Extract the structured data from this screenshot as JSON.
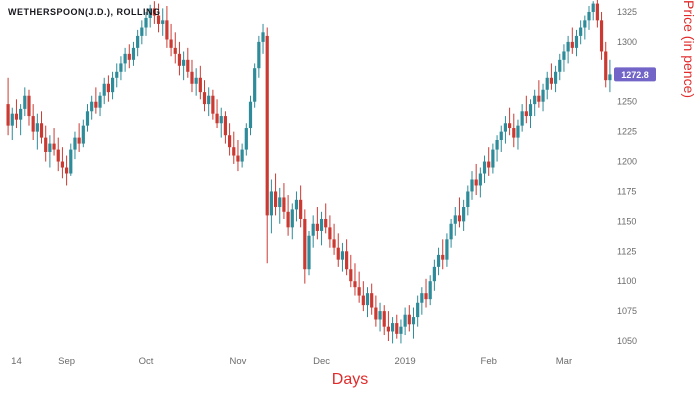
{
  "title": {
    "text": "WETHERSPOON(J.D.), ROLLING"
  },
  "axis_titles": {
    "x": "Days",
    "y": "Price (in pence)"
  },
  "colors": {
    "up": "#2e8b99",
    "down": "#cb3a32",
    "axis_text": "#6b6b6b",
    "axis_title": "#e12b2b",
    "badge": "#7265c7",
    "badge_text": "#ffffff",
    "title_text": "#16161d",
    "background": "#ffffff"
  },
  "chart_data": {
    "type": "candlestick",
    "title": "WETHERSPOON(J.D.), ROLLING",
    "xlabel": "Days",
    "ylabel": "Price (in pence)",
    "ylim": [
      1040,
      1335
    ],
    "grid": false,
    "legend": "none",
    "last_price": 1272.8,
    "y_ticks": [
      1325,
      1300,
      1275,
      1250,
      1225,
      1200,
      1175,
      1150,
      1125,
      1100,
      1075,
      1050
    ],
    "x_ticks": [
      {
        "label": "14",
        "index": 2
      },
      {
        "label": "Sep",
        "index": 14
      },
      {
        "label": "Oct",
        "index": 33
      },
      {
        "label": "Nov",
        "index": 55
      },
      {
        "label": "Dec",
        "index": 75
      },
      {
        "label": "2019",
        "index": 95
      },
      {
        "label": "Feb",
        "index": 115
      },
      {
        "label": "Mar",
        "index": 133
      }
    ],
    "candles": [
      [
        1248,
        1270,
        1222,
        1230
      ],
      [
        1230,
        1245,
        1218,
        1240
      ],
      [
        1240,
        1252,
        1228,
        1235
      ],
      [
        1235,
        1248,
        1222,
        1244
      ],
      [
        1244,
        1262,
        1238,
        1255
      ],
      [
        1255,
        1260,
        1230,
        1238
      ],
      [
        1238,
        1248,
        1218,
        1225
      ],
      [
        1225,
        1240,
        1210,
        1232
      ],
      [
        1232,
        1242,
        1215,
        1220
      ],
      [
        1220,
        1230,
        1200,
        1208
      ],
      [
        1208,
        1222,
        1195,
        1215
      ],
      [
        1215,
        1228,
        1205,
        1210
      ],
      [
        1210,
        1220,
        1192,
        1200
      ],
      [
        1200,
        1212,
        1186,
        1195
      ],
      [
        1195,
        1205,
        1180,
        1190
      ],
      [
        1190,
        1215,
        1188,
        1210
      ],
      [
        1210,
        1225,
        1202,
        1220
      ],
      [
        1220,
        1232,
        1208,
        1215
      ],
      [
        1215,
        1235,
        1212,
        1230
      ],
      [
        1230,
        1248,
        1225,
        1242
      ],
      [
        1242,
        1255,
        1235,
        1250
      ],
      [
        1250,
        1262,
        1240,
        1245
      ],
      [
        1245,
        1258,
        1238,
        1255
      ],
      [
        1255,
        1270,
        1248,
        1265
      ],
      [
        1265,
        1272,
        1250,
        1258
      ],
      [
        1258,
        1275,
        1252,
        1270
      ],
      [
        1270,
        1282,
        1262,
        1275
      ],
      [
        1275,
        1288,
        1268,
        1282
      ],
      [
        1282,
        1295,
        1275,
        1290
      ],
      [
        1290,
        1298,
        1278,
        1285
      ],
      [
        1285,
        1300,
        1280,
        1295
      ],
      [
        1295,
        1310,
        1288,
        1305
      ],
      [
        1305,
        1318,
        1298,
        1312
      ],
      [
        1312,
        1325,
        1305,
        1320
      ],
      [
        1320,
        1331,
        1312,
        1328
      ],
      [
        1328,
        1334,
        1315,
        1322
      ],
      [
        1322,
        1332,
        1308,
        1315
      ],
      [
        1315,
        1328,
        1305,
        1318
      ],
      [
        1318,
        1330,
        1295,
        1302
      ],
      [
        1302,
        1315,
        1288,
        1295
      ],
      [
        1295,
        1308,
        1282,
        1290
      ],
      [
        1290,
        1300,
        1272,
        1280
      ],
      [
        1280,
        1292,
        1268,
        1285
      ],
      [
        1285,
        1295,
        1270,
        1275
      ],
      [
        1275,
        1285,
        1258,
        1265
      ],
      [
        1265,
        1278,
        1255,
        1270
      ],
      [
        1270,
        1280,
        1252,
        1258
      ],
      [
        1258,
        1268,
        1242,
        1248
      ],
      [
        1248,
        1262,
        1238,
        1255
      ],
      [
        1255,
        1260,
        1235,
        1240
      ],
      [
        1240,
        1252,
        1228,
        1232
      ],
      [
        1232,
        1245,
        1220,
        1238
      ],
      [
        1238,
        1242,
        1215,
        1222
      ],
      [
        1222,
        1232,
        1205,
        1212
      ],
      [
        1212,
        1225,
        1198,
        1205
      ],
      [
        1205,
        1218,
        1192,
        1200
      ],
      [
        1200,
        1215,
        1195,
        1210
      ],
      [
        1210,
        1232,
        1205,
        1228
      ],
      [
        1228,
        1255,
        1222,
        1250
      ],
      [
        1250,
        1282,
        1245,
        1278
      ],
      [
        1278,
        1305,
        1270,
        1300
      ],
      [
        1300,
        1315,
        1290,
        1308
      ],
      [
        1305,
        1312,
        1115,
        1155
      ],
      [
        1155,
        1185,
        1140,
        1175
      ],
      [
        1175,
        1190,
        1155,
        1162
      ],
      [
        1162,
        1178,
        1148,
        1170
      ],
      [
        1170,
        1182,
        1152,
        1158
      ],
      [
        1158,
        1172,
        1138,
        1145
      ],
      [
        1145,
        1165,
        1135,
        1160
      ],
      [
        1160,
        1175,
        1150,
        1168
      ],
      [
        1168,
        1180,
        1145,
        1152
      ],
      [
        1152,
        1160,
        1098,
        1110
      ],
      [
        1110,
        1142,
        1105,
        1138
      ],
      [
        1138,
        1155,
        1128,
        1148
      ],
      [
        1148,
        1162,
        1135,
        1142
      ],
      [
        1142,
        1158,
        1130,
        1152
      ],
      [
        1152,
        1165,
        1140,
        1145
      ],
      [
        1145,
        1155,
        1128,
        1135
      ],
      [
        1135,
        1148,
        1122,
        1128
      ],
      [
        1128,
        1140,
        1112,
        1118
      ],
      [
        1118,
        1132,
        1108,
        1125
      ],
      [
        1125,
        1135,
        1105,
        1110
      ],
      [
        1110,
        1122,
        1095,
        1100
      ],
      [
        1100,
        1115,
        1088,
        1095
      ],
      [
        1095,
        1108,
        1082,
        1088
      ],
      [
        1088,
        1100,
        1075,
        1080
      ],
      [
        1080,
        1095,
        1070,
        1090
      ],
      [
        1090,
        1098,
        1072,
        1078
      ],
      [
        1078,
        1088,
        1062,
        1068
      ],
      [
        1068,
        1082,
        1058,
        1075
      ],
      [
        1075,
        1080,
        1055,
        1062
      ],
      [
        1062,
        1075,
        1050,
        1058
      ],
      [
        1058,
        1070,
        1048,
        1065
      ],
      [
        1065,
        1072,
        1052,
        1056
      ],
      [
        1056,
        1068,
        1048,
        1062
      ],
      [
        1062,
        1078,
        1055,
        1072
      ],
      [
        1072,
        1080,
        1058,
        1064
      ],
      [
        1064,
        1078,
        1052,
        1070
      ],
      [
        1070,
        1088,
        1062,
        1082
      ],
      [
        1082,
        1095,
        1072,
        1090
      ],
      [
        1090,
        1102,
        1078,
        1085
      ],
      [
        1085,
        1105,
        1080,
        1100
      ],
      [
        1100,
        1118,
        1092,
        1112
      ],
      [
        1112,
        1128,
        1105,
        1122
      ],
      [
        1122,
        1135,
        1110,
        1118
      ],
      [
        1118,
        1140,
        1112,
        1135
      ],
      [
        1135,
        1152,
        1128,
        1148
      ],
      [
        1148,
        1162,
        1138,
        1155
      ],
      [
        1155,
        1170,
        1145,
        1150
      ],
      [
        1150,
        1168,
        1142,
        1162
      ],
      [
        1162,
        1180,
        1155,
        1175
      ],
      [
        1175,
        1192,
        1168,
        1185
      ],
      [
        1185,
        1198,
        1172,
        1180
      ],
      [
        1180,
        1195,
        1170,
        1190
      ],
      [
        1190,
        1205,
        1182,
        1200
      ],
      [
        1200,
        1212,
        1188,
        1195
      ],
      [
        1195,
        1215,
        1190,
        1210
      ],
      [
        1210,
        1222,
        1200,
        1218
      ],
      [
        1218,
        1230,
        1208,
        1225
      ],
      [
        1225,
        1238,
        1215,
        1232
      ],
      [
        1232,
        1245,
        1222,
        1228
      ],
      [
        1228,
        1240,
        1212,
        1220
      ],
      [
        1220,
        1235,
        1210,
        1230
      ],
      [
        1230,
        1248,
        1225,
        1242
      ],
      [
        1242,
        1255,
        1232,
        1238
      ],
      [
        1238,
        1252,
        1228,
        1248
      ],
      [
        1248,
        1260,
        1238,
        1255
      ],
      [
        1255,
        1268,
        1245,
        1250
      ],
      [
        1250,
        1265,
        1242,
        1260
      ],
      [
        1260,
        1275,
        1252,
        1270
      ],
      [
        1270,
        1282,
        1260,
        1265
      ],
      [
        1265,
        1280,
        1258,
        1275
      ],
      [
        1275,
        1290,
        1268,
        1285
      ],
      [
        1285,
        1298,
        1275,
        1292
      ],
      [
        1292,
        1305,
        1282,
        1300
      ],
      [
        1300,
        1312,
        1290,
        1295
      ],
      [
        1295,
        1310,
        1288,
        1305
      ],
      [
        1305,
        1318,
        1298,
        1312
      ],
      [
        1312,
        1322,
        1302,
        1318
      ],
      [
        1318,
        1330,
        1310,
        1325
      ],
      [
        1325,
        1334,
        1318,
        1332
      ],
      [
        1332,
        1335,
        1312,
        1318
      ],
      [
        1318,
        1325,
        1285,
        1292
      ],
      [
        1292,
        1300,
        1262,
        1268
      ],
      [
        1268,
        1285,
        1258,
        1272.8
      ]
    ]
  }
}
